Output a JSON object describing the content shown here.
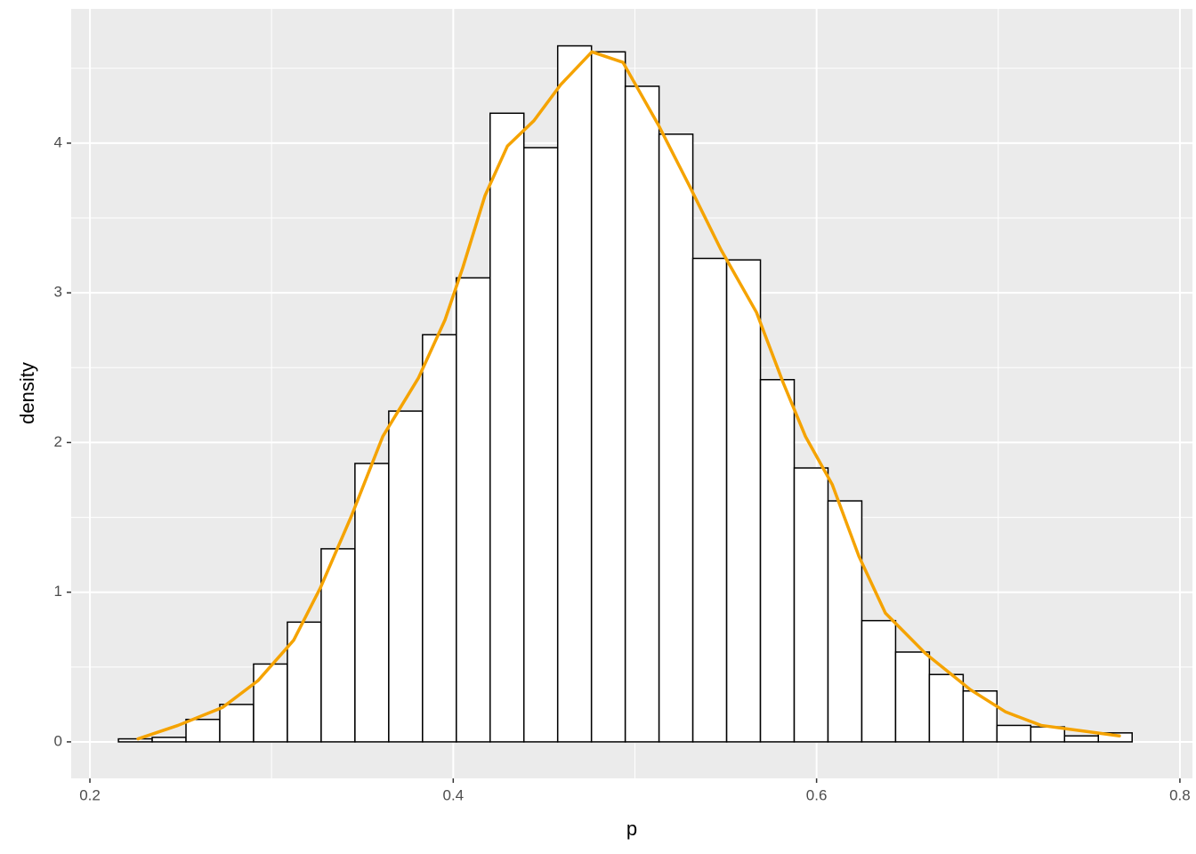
{
  "chart_data": {
    "type": "histogram",
    "xlabel": "p",
    "ylabel": "density",
    "bins": [
      0.2157,
      0.2343,
      0.2529,
      0.2715,
      0.2901,
      0.3087,
      0.3273,
      0.3459,
      0.3645,
      0.3831,
      0.4017,
      0.4203,
      0.4389,
      0.4575,
      0.4761,
      0.4947,
      0.5133,
      0.5319,
      0.5505,
      0.5691,
      0.5877,
      0.6063,
      0.6249,
      0.6435,
      0.6621,
      0.6807,
      0.6993,
      0.7179,
      0.7365,
      0.7551,
      0.7737
    ],
    "values": [
      0.02,
      0.03,
      0.15,
      0.25,
      0.52,
      0.8,
      1.29,
      1.86,
      2.21,
      2.72,
      3.1,
      4.2,
      3.97,
      4.65,
      4.61,
      4.38,
      4.06,
      3.23,
      3.22,
      2.42,
      1.83,
      1.61,
      0.81,
      0.6,
      0.45,
      0.34,
      0.11,
      0.1,
      0.04,
      0.06
    ],
    "fill": "#ffffff",
    "edgecolor": "#000000",
    "density": {
      "color": "#f5a300",
      "x": [
        0.2265,
        0.2485,
        0.273,
        0.2926,
        0.3122,
        0.3269,
        0.344,
        0.3612,
        0.3808,
        0.3955,
        0.4053,
        0.4175,
        0.4298,
        0.4444,
        0.4591,
        0.4763,
        0.4934,
        0.513,
        0.5302,
        0.5473,
        0.5669,
        0.5816,
        0.5939,
        0.6086,
        0.6233,
        0.6379,
        0.66,
        0.6845,
        0.7041,
        0.7236,
        0.7481,
        0.7667
      ],
      "y": [
        0.02,
        0.11,
        0.23,
        0.41,
        0.68,
        1.03,
        1.51,
        2.04,
        2.43,
        2.82,
        3.17,
        3.65,
        3.98,
        4.15,
        4.39,
        4.61,
        4.54,
        4.12,
        3.71,
        3.29,
        2.87,
        2.4,
        2.04,
        1.72,
        1.24,
        0.86,
        0.59,
        0.35,
        0.2,
        0.11,
        0.07,
        0.04
      ]
    },
    "xlim": [
      0.1897,
      0.8069
    ],
    "ylim": [
      -0.244,
      4.897
    ],
    "xticks": [
      0.2,
      0.4,
      0.6,
      0.8
    ],
    "yticks": [
      0,
      1,
      2,
      3,
      4
    ],
    "x_minor_breaks": [
      0.3,
      0.5,
      0.7
    ],
    "y_minor_breaks": [
      0.5,
      1.5,
      2.5,
      3.5,
      4.5
    ],
    "grid": true
  }
}
